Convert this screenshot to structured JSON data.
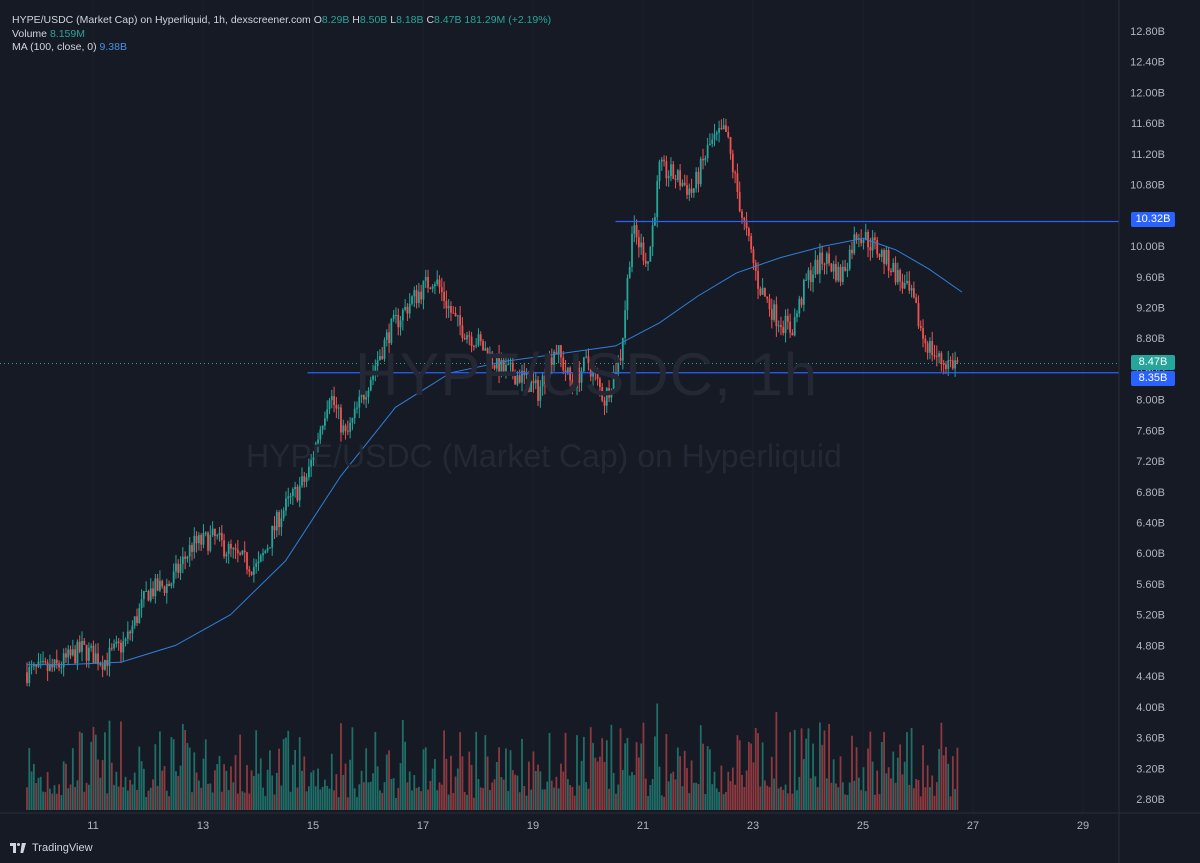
{
  "legend": {
    "title": "HYPE/USDC (Market Cap) on Hyperliquid, 1h, dexscreener.com",
    "o_label": "O",
    "o": "8.29B",
    "h_label": "H",
    "h": "8.50B",
    "l_label": "L",
    "l": "8.18B",
    "c_label": "C",
    "c": "8.47B",
    "change": "181.29M (+2.19%)",
    "volume_label": "Volume",
    "volume": "8.159M",
    "ma_label": "MA (100, close, 0)",
    "ma": "9.38B"
  },
  "watermark": {
    "symbol": "HYPE/USDC, 1h",
    "name": "HYPE/USDC (Market Cap) on Hyperliquid"
  },
  "price_labels": {
    "resistance": "10.32B",
    "current": "8.47B",
    "support": "8.35B"
  },
  "footer": {
    "brand": "TradingView"
  },
  "colors": {
    "background": "#161a25",
    "up": "#26a69a",
    "down": "#ef5350",
    "ma": "#2f7fd8",
    "hline": "#2962ff",
    "current": "#26a69a"
  },
  "chart_data": {
    "type": "candlestick",
    "title": "HYPE/USDC (Market Cap) on Hyperliquid, 1h",
    "y_ticks": [
      "12.80B",
      "12.40B",
      "12.00B",
      "11.60B",
      "11.20B",
      "10.80B",
      "10.40B",
      "10.00B",
      "9.60B",
      "9.20B",
      "8.80B",
      "8.40B",
      "8.00B",
      "7.60B",
      "7.20B",
      "6.80B",
      "6.40B",
      "6.00B",
      "5.60B",
      "5.20B",
      "4.80B",
      "4.40B",
      "4.00B",
      "3.60B",
      "3.20B",
      "2.80B"
    ],
    "x_ticks": [
      "11",
      "13",
      "15",
      "17",
      "19",
      "21",
      "23",
      "25",
      "27",
      "29"
    ],
    "ylim": [
      2.8,
      12.8
    ],
    "horizontal_lines": [
      {
        "value": 10.32,
        "from_day": 20.5
      },
      {
        "value": 8.35,
        "from_day": 14.9
      }
    ],
    "close_path": [
      [
        9.8,
        4.45
      ],
      [
        10.3,
        4.5
      ],
      [
        10.8,
        4.75
      ],
      [
        11.2,
        4.6
      ],
      [
        11.6,
        4.85
      ],
      [
        12.0,
        5.5
      ],
      [
        12.4,
        5.6
      ],
      [
        12.8,
        6.1
      ],
      [
        13.2,
        6.2
      ],
      [
        13.6,
        5.95
      ],
      [
        14.0,
        5.8
      ],
      [
        14.4,
        6.5
      ],
      [
        14.9,
        7.0
      ],
      [
        15.3,
        8.1
      ],
      [
        15.6,
        7.5
      ],
      [
        16.1,
        8.4
      ],
      [
        16.4,
        8.9
      ],
      [
        16.8,
        9.3
      ],
      [
        17.2,
        9.6
      ],
      [
        17.6,
        9.0
      ],
      [
        18.0,
        8.75
      ],
      [
        18.4,
        8.4
      ],
      [
        18.8,
        8.3
      ],
      [
        19.1,
        8.1
      ],
      [
        19.4,
        8.7
      ],
      [
        19.7,
        8.2
      ],
      [
        20.0,
        8.5
      ],
      [
        20.3,
        8.0
      ],
      [
        20.6,
        8.6
      ],
      [
        20.8,
        10.2
      ],
      [
        21.1,
        9.8
      ],
      [
        21.3,
        11.0
      ],
      [
        21.6,
        10.9
      ],
      [
        21.9,
        10.7
      ],
      [
        22.2,
        11.3
      ],
      [
        22.5,
        11.5
      ],
      [
        22.8,
        10.4
      ],
      [
        23.1,
        9.5
      ],
      [
        23.4,
        9.1
      ],
      [
        23.7,
        8.9
      ],
      [
        24.0,
        9.6
      ],
      [
        24.3,
        9.85
      ],
      [
        24.6,
        9.6
      ],
      [
        24.9,
        10.2
      ],
      [
        25.2,
        10.0
      ],
      [
        25.5,
        9.75
      ],
      [
        25.9,
        9.3
      ],
      [
        26.1,
        8.8
      ],
      [
        26.4,
        8.5
      ],
      [
        26.7,
        8.47
      ]
    ],
    "ma_path": [
      [
        9.8,
        4.55
      ],
      [
        10.5,
        4.55
      ],
      [
        11.5,
        4.58
      ],
      [
        12.5,
        4.8
      ],
      [
        13.5,
        5.2
      ],
      [
        14.5,
        5.9
      ],
      [
        15.5,
        7.0
      ],
      [
        16.5,
        7.9
      ],
      [
        17.5,
        8.35
      ],
      [
        18.5,
        8.5
      ],
      [
        19.5,
        8.6
      ],
      [
        20.5,
        8.7
      ],
      [
        21.3,
        9.0
      ],
      [
        22.0,
        9.35
      ],
      [
        22.7,
        9.65
      ],
      [
        23.5,
        9.85
      ],
      [
        24.3,
        10.0
      ],
      [
        25.0,
        10.1
      ],
      [
        25.6,
        9.95
      ],
      [
        26.2,
        9.7
      ],
      [
        26.8,
        9.4
      ]
    ]
  }
}
